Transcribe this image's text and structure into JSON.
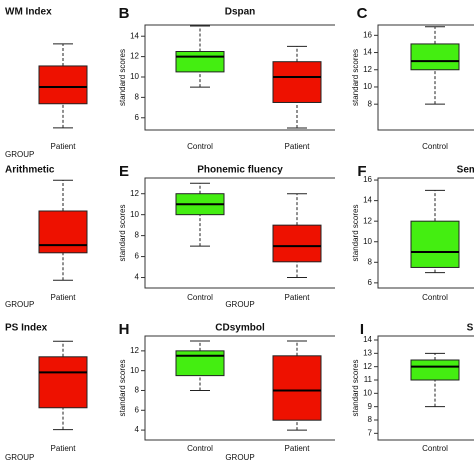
{
  "chart_data": [
    {
      "type": "box",
      "title": "WM Index",
      "x_label": "GROUP",
      "categories": [
        "Patient"
      ],
      "ylim": [
        0,
        100
      ],
      "boxes": [
        {
          "low": 2,
          "q1": 25,
          "median": 41,
          "q3": 61,
          "high": 82,
          "color": "#ee1100"
        }
      ]
    },
    {
      "type": "box",
      "panel_label": "B",
      "title": "Dspan",
      "y_label": "standard scores",
      "categories": [
        "Control",
        "Patient"
      ],
      "ylim": [
        4.8,
        15.1
      ],
      "yticks": [
        6,
        8,
        10,
        12,
        14
      ],
      "boxes": [
        {
          "low": 9,
          "q1": 10.5,
          "median": 12,
          "q3": 12.5,
          "high": 15,
          "color": "#44ee11"
        },
        {
          "low": 5,
          "q1": 7.5,
          "median": 10,
          "q3": 11.5,
          "high": 13,
          "color": "#ee1100"
        }
      ]
    },
    {
      "type": "box",
      "panel_label": "C",
      "y_label": "standard scores",
      "categories": [
        "Control"
      ],
      "ylim": [
        5,
        17.2
      ],
      "yticks": [
        8,
        10,
        12,
        14,
        16
      ],
      "boxes": [
        {
          "low": 8,
          "q1": 12,
          "median": 13,
          "q3": 15,
          "high": 17,
          "color": "#44ee11"
        }
      ]
    },
    {
      "type": "box",
      "title": "Arithmetic",
      "x_label": "GROUP",
      "categories": [
        "Patient"
      ],
      "ylim": [
        0,
        100
      ],
      "boxes": [
        {
          "low": 7,
          "q1": 32,
          "median": 39,
          "q3": 70,
          "high": 98,
          "color": "#ee1100"
        }
      ]
    },
    {
      "type": "box",
      "panel_label": "E",
      "title": "Phonemic fluency",
      "y_label": "standard scores",
      "x_label": "GROUP",
      "categories": [
        "Control",
        "Patient"
      ],
      "ylim": [
        3,
        13.5
      ],
      "yticks": [
        4,
        6,
        8,
        10,
        12
      ],
      "boxes": [
        {
          "low": 7,
          "q1": 10,
          "median": 11,
          "q3": 12,
          "high": 13,
          "color": "#44ee11"
        },
        {
          "low": 4,
          "q1": 5.5,
          "median": 7,
          "q3": 9,
          "high": 12,
          "color": "#ee1100"
        }
      ]
    },
    {
      "type": "box",
      "panel_label": "F",
      "title": "Sema",
      "y_label": "standard scores",
      "categories": [
        "Control"
      ],
      "ylim": [
        5.5,
        16.2
      ],
      "yticks": [
        6,
        8,
        10,
        12,
        14,
        16
      ],
      "boxes": [
        {
          "low": 7,
          "q1": 7.5,
          "median": 9,
          "q3": 12,
          "high": 15,
          "color": "#44ee11"
        }
      ]
    },
    {
      "type": "box",
      "title": "PS Index",
      "x_label": "GROUP",
      "categories": [
        "Patient"
      ],
      "ylim": [
        0,
        100
      ],
      "boxes": [
        {
          "low": 10,
          "q1": 31,
          "median": 65,
          "q3": 80,
          "high": 95,
          "color": "#ee1100"
        }
      ]
    },
    {
      "type": "box",
      "panel_label": "H",
      "title": "CDsymbol",
      "y_label": "standard scores",
      "x_label": "GROUP",
      "categories": [
        "Control",
        "Patient"
      ],
      "ylim": [
        3,
        13.5
      ],
      "yticks": [
        4,
        6,
        8,
        10,
        12
      ],
      "boxes": [
        {
          "low": 8,
          "q1": 9.5,
          "median": 11.5,
          "q3": 12,
          "high": 13,
          "color": "#44ee11"
        },
        {
          "low": 4,
          "q1": 5,
          "median": 8,
          "q3": 11.5,
          "high": 13,
          "color": "#ee1100"
        }
      ]
    },
    {
      "type": "box",
      "panel_label": "I",
      "title": "S",
      "y_label": "standard scores",
      "categories": [
        "Control"
      ],
      "ylim": [
        6.5,
        14.3
      ],
      "yticks": [
        7,
        8,
        9,
        10,
        11,
        12,
        13,
        14
      ],
      "boxes": [
        {
          "low": 9,
          "q1": 11,
          "median": 12,
          "q3": 12.5,
          "high": 13,
          "color": "#44ee11"
        }
      ]
    }
  ]
}
